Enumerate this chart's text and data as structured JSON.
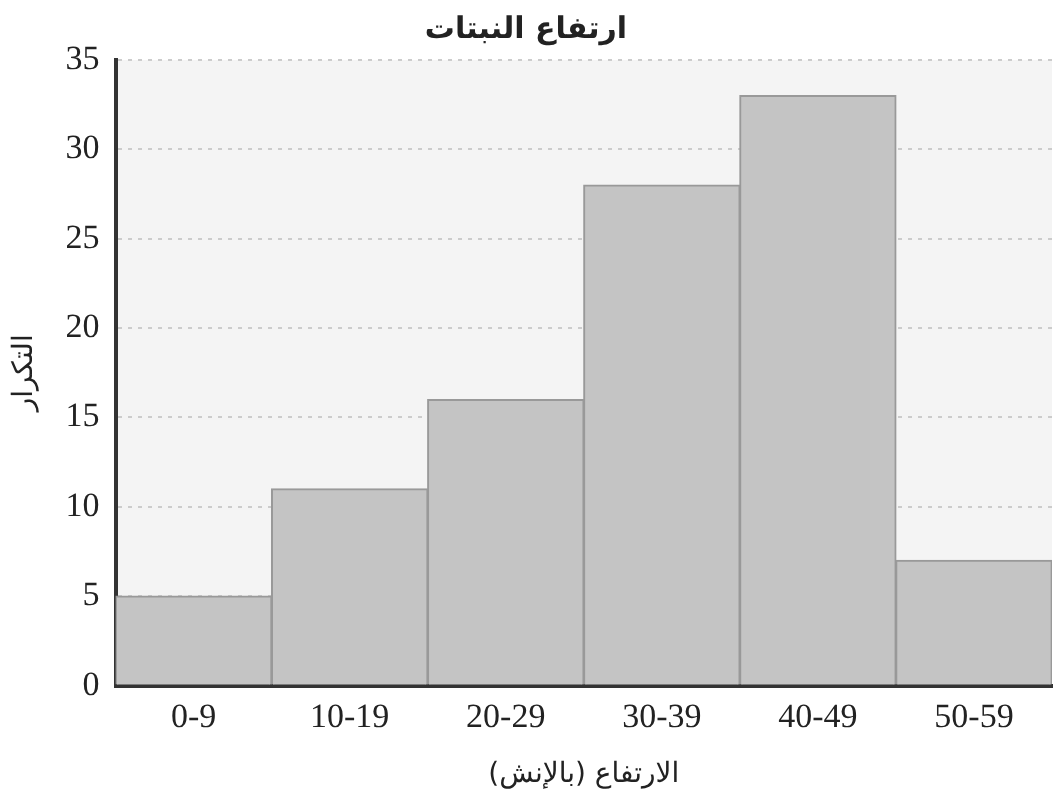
{
  "chart_data": {
    "type": "bar",
    "title": "ارتفاع النبتات",
    "xlabel": "الارتفاع (بالإنش)",
    "ylabel": "التكرار",
    "categories": [
      "0-9",
      "10-19",
      "20-29",
      "30-39",
      "40-49",
      "50-59"
    ],
    "values": [
      5,
      11,
      16,
      28,
      33,
      7
    ],
    "color": "#c4c4c4",
    "ylim": [
      0,
      35
    ],
    "yticks": [
      0,
      5,
      10,
      15,
      20,
      25,
      30,
      35
    ],
    "grid": "y",
    "line_style": "dotted"
  }
}
